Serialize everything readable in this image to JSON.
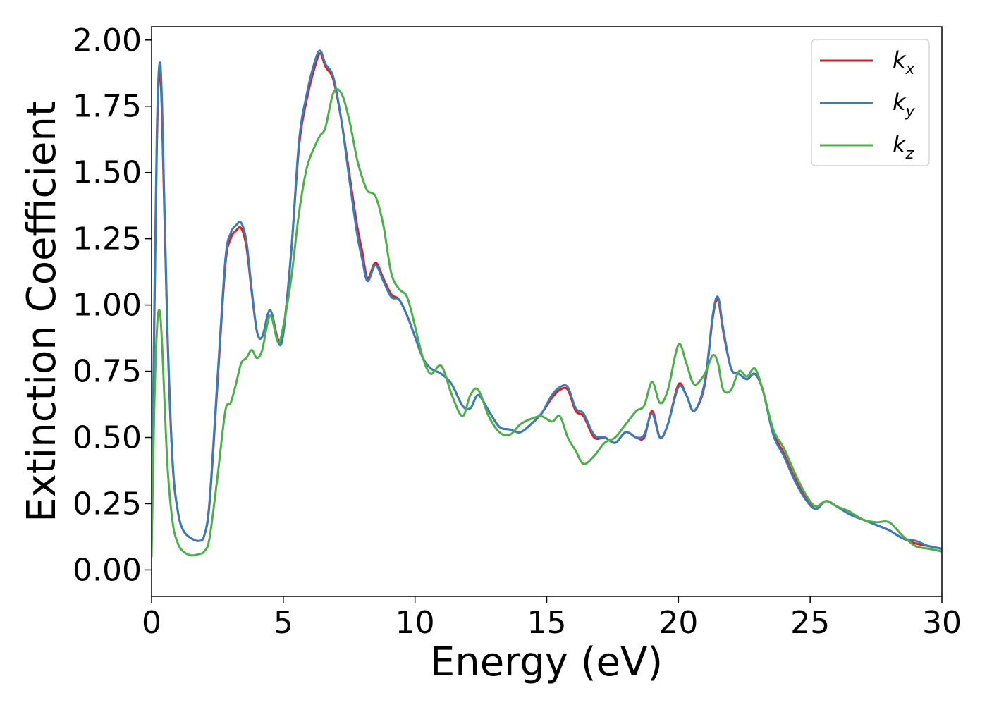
{
  "chart_data": {
    "type": "line",
    "title": "",
    "xlabel": "Energy (eV)",
    "ylabel": "Extinction Coefficient",
    "xlim": [
      0,
      30
    ],
    "ylim": [
      -0.1,
      2.05
    ],
    "xticks": [
      0,
      5,
      10,
      15,
      20,
      25,
      30
    ],
    "xtick_labels": [
      "0",
      "5",
      "10",
      "15",
      "20",
      "25",
      "30"
    ],
    "yticks": [
      0.0,
      0.25,
      0.5,
      0.75,
      1.0,
      1.25,
      1.5,
      1.75,
      2.0
    ],
    "ytick_labels": [
      "0.00",
      "0.25",
      "0.50",
      "0.75",
      "1.00",
      "1.25",
      "1.50",
      "1.75",
      "2.00"
    ],
    "grid": false,
    "legend_position": "top-right",
    "series": [
      {
        "name": "kx",
        "label_base": "k",
        "label_sub": "x",
        "color": "#e41a1c",
        "x": [
          0,
          0.1,
          0.2,
          0.3,
          0.4,
          0.6,
          0.8,
          1.0,
          1.2,
          1.5,
          1.8,
          2.0,
          2.2,
          2.5,
          2.8,
          3.0,
          3.2,
          3.4,
          3.6,
          3.8,
          4.0,
          4.2,
          4.5,
          4.8,
          5.0,
          5.3,
          5.6,
          5.9,
          6.2,
          6.4,
          6.6,
          6.9,
          7.2,
          7.5,
          7.8,
          8.0,
          8.2,
          8.5,
          8.8,
          9.1,
          9.4,
          9.7,
          10.0,
          10.3,
          10.6,
          11.0,
          11.4,
          11.8,
          12.1,
          12.4,
          12.8,
          13.2,
          13.6,
          14.0,
          14.4,
          14.8,
          15.2,
          15.5,
          15.8,
          16.1,
          16.4,
          16.8,
          17.2,
          17.6,
          18.0,
          18.4,
          18.7,
          19.0,
          19.3,
          19.6,
          20.0,
          20.3,
          20.6,
          21.0,
          21.3,
          21.5,
          21.7,
          22.0,
          22.3,
          22.6,
          22.9,
          23.2,
          23.6,
          24.0,
          24.4,
          24.8,
          25.2,
          25.6,
          26.0,
          26.5,
          27.0,
          27.5,
          28.0,
          28.5,
          29.0,
          29.5,
          30.0
        ],
        "y": [
          0.1,
          0.9,
          1.6,
          1.88,
          1.7,
          0.9,
          0.4,
          0.22,
          0.15,
          0.12,
          0.11,
          0.13,
          0.25,
          0.7,
          1.15,
          1.25,
          1.28,
          1.29,
          1.22,
          1.05,
          0.9,
          0.88,
          0.98,
          0.87,
          0.9,
          1.2,
          1.6,
          1.78,
          1.9,
          1.95,
          1.9,
          1.85,
          1.7,
          1.5,
          1.3,
          1.2,
          1.1,
          1.16,
          1.1,
          1.04,
          1.02,
          0.96,
          0.88,
          0.8,
          0.76,
          0.74,
          0.7,
          0.62,
          0.61,
          0.66,
          0.6,
          0.54,
          0.53,
          0.52,
          0.55,
          0.59,
          0.65,
          0.68,
          0.68,
          0.6,
          0.58,
          0.5,
          0.5,
          0.48,
          0.52,
          0.5,
          0.5,
          0.6,
          0.5,
          0.55,
          0.7,
          0.66,
          0.6,
          0.7,
          0.95,
          1.02,
          0.9,
          0.76,
          0.74,
          0.72,
          0.74,
          0.68,
          0.52,
          0.44,
          0.35,
          0.28,
          0.23,
          0.26,
          0.24,
          0.21,
          0.19,
          0.17,
          0.15,
          0.12,
          0.1,
          0.09,
          0.08
        ]
      },
      {
        "name": "ky",
        "label_base": "k",
        "label_sub": "y",
        "color": "#377eb8",
        "x": [
          0,
          0.1,
          0.2,
          0.3,
          0.4,
          0.6,
          0.8,
          1.0,
          1.2,
          1.5,
          1.8,
          2.0,
          2.2,
          2.5,
          2.8,
          3.0,
          3.2,
          3.4,
          3.6,
          3.8,
          4.0,
          4.2,
          4.5,
          4.8,
          5.0,
          5.3,
          5.6,
          5.9,
          6.2,
          6.4,
          6.6,
          6.9,
          7.2,
          7.5,
          7.8,
          8.0,
          8.2,
          8.5,
          8.8,
          9.1,
          9.4,
          9.7,
          10.0,
          10.3,
          10.6,
          11.0,
          11.4,
          11.8,
          12.1,
          12.4,
          12.8,
          13.2,
          13.6,
          14.0,
          14.4,
          14.8,
          15.2,
          15.5,
          15.8,
          16.1,
          16.4,
          16.8,
          17.2,
          17.6,
          18.0,
          18.4,
          18.7,
          19.0,
          19.3,
          19.6,
          20.0,
          20.3,
          20.6,
          21.0,
          21.3,
          21.5,
          21.7,
          22.0,
          22.3,
          22.6,
          22.9,
          23.2,
          23.6,
          24.0,
          24.4,
          24.8,
          25.2,
          25.6,
          26.0,
          26.5,
          27.0,
          27.5,
          28.0,
          28.5,
          29.0,
          29.5,
          30.0
        ],
        "y": [
          0.1,
          0.95,
          1.65,
          1.91,
          1.75,
          0.92,
          0.41,
          0.22,
          0.15,
          0.12,
          0.11,
          0.13,
          0.26,
          0.72,
          1.17,
          1.27,
          1.3,
          1.31,
          1.24,
          1.06,
          0.9,
          0.88,
          0.98,
          0.86,
          0.89,
          1.2,
          1.62,
          1.8,
          1.92,
          1.96,
          1.91,
          1.86,
          1.7,
          1.48,
          1.27,
          1.17,
          1.09,
          1.15,
          1.09,
          1.03,
          1.02,
          0.96,
          0.88,
          0.8,
          0.76,
          0.74,
          0.7,
          0.62,
          0.61,
          0.66,
          0.6,
          0.54,
          0.53,
          0.52,
          0.55,
          0.59,
          0.66,
          0.69,
          0.69,
          0.61,
          0.59,
          0.51,
          0.5,
          0.48,
          0.52,
          0.5,
          0.51,
          0.59,
          0.5,
          0.55,
          0.69,
          0.66,
          0.6,
          0.71,
          0.96,
          1.03,
          0.91,
          0.76,
          0.74,
          0.72,
          0.74,
          0.68,
          0.51,
          0.43,
          0.34,
          0.27,
          0.23,
          0.26,
          0.24,
          0.21,
          0.19,
          0.17,
          0.15,
          0.12,
          0.11,
          0.09,
          0.08
        ]
      },
      {
        "name": "kz",
        "label_base": "k",
        "label_sub": "z",
        "color": "#4daf4a",
        "x": [
          0,
          0.1,
          0.2,
          0.3,
          0.4,
          0.6,
          0.8,
          1.0,
          1.2,
          1.5,
          1.8,
          2.0,
          2.2,
          2.5,
          2.8,
          3.0,
          3.2,
          3.4,
          3.6,
          3.8,
          4.0,
          4.2,
          4.5,
          4.8,
          5.0,
          5.3,
          5.6,
          5.9,
          6.2,
          6.4,
          6.6,
          6.9,
          7.2,
          7.5,
          7.8,
          8.0,
          8.2,
          8.5,
          8.8,
          9.1,
          9.4,
          9.7,
          10.0,
          10.3,
          10.6,
          11.0,
          11.4,
          11.8,
          12.1,
          12.4,
          12.8,
          13.2,
          13.6,
          14.0,
          14.4,
          14.8,
          15.2,
          15.5,
          15.8,
          16.1,
          16.4,
          16.8,
          17.2,
          17.6,
          18.0,
          18.4,
          18.7,
          19.0,
          19.3,
          19.6,
          20.0,
          20.3,
          20.6,
          21.0,
          21.3,
          21.5,
          21.7,
          22.0,
          22.3,
          22.6,
          22.9,
          23.2,
          23.6,
          24.0,
          24.4,
          24.8,
          25.2,
          25.6,
          26.0,
          26.5,
          27.0,
          27.5,
          28.0,
          28.5,
          29.0,
          29.5,
          30.0
        ],
        "y": [
          0.05,
          0.6,
          0.9,
          0.98,
          0.85,
          0.4,
          0.18,
          0.1,
          0.07,
          0.055,
          0.06,
          0.07,
          0.12,
          0.35,
          0.6,
          0.63,
          0.7,
          0.78,
          0.8,
          0.83,
          0.8,
          0.83,
          0.96,
          0.86,
          0.92,
          1.1,
          1.35,
          1.52,
          1.6,
          1.64,
          1.67,
          1.8,
          1.8,
          1.7,
          1.55,
          1.48,
          1.43,
          1.41,
          1.3,
          1.12,
          1.06,
          1.03,
          0.92,
          0.8,
          0.74,
          0.77,
          0.66,
          0.58,
          0.66,
          0.68,
          0.58,
          0.52,
          0.51,
          0.55,
          0.57,
          0.58,
          0.56,
          0.58,
          0.5,
          0.45,
          0.4,
          0.43,
          0.48,
          0.5,
          0.55,
          0.6,
          0.62,
          0.71,
          0.63,
          0.68,
          0.85,
          0.78,
          0.7,
          0.74,
          0.81,
          0.78,
          0.68,
          0.68,
          0.75,
          0.73,
          0.76,
          0.68,
          0.53,
          0.46,
          0.37,
          0.29,
          0.24,
          0.26,
          0.24,
          0.22,
          0.19,
          0.18,
          0.18,
          0.13,
          0.09,
          0.08,
          0.07
        ]
      }
    ]
  }
}
